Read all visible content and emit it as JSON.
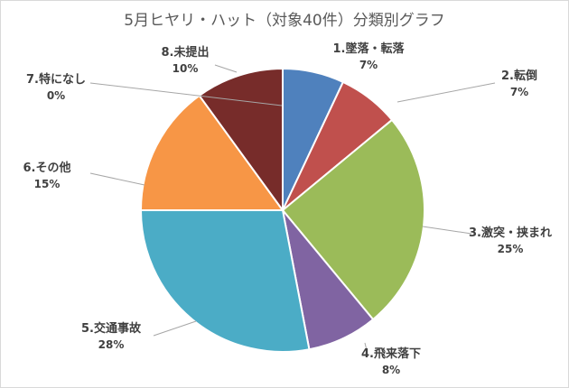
{
  "chart_data": {
    "type": "pie",
    "title": "5月ヒヤリ・ハット（対象40件）分類別グラフ",
    "categories": [
      "1.墜落・転落",
      "2.転倒",
      "3.激突・挟まれ",
      "4.飛来落下",
      "5.交通事故",
      "6.その他",
      "7.特になし",
      "8.未提出"
    ],
    "values": [
      7,
      7,
      25,
      8,
      28,
      15,
      0,
      10
    ],
    "value_labels": [
      "7%",
      "7%",
      "25%",
      "8%",
      "28%",
      "15%",
      "0%",
      "10%"
    ],
    "colors": [
      "#4f81bd",
      "#c0504d",
      "#9bbb59",
      "#8064a2",
      "#4bacc6",
      "#f79646",
      "#2c4d75",
      "#772c2a"
    ],
    "start": "12 o'clock, clockwise",
    "legend": "none"
  }
}
